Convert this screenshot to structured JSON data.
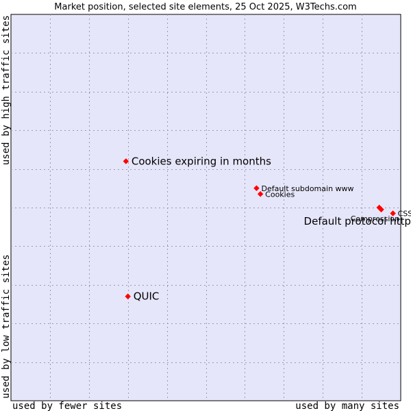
{
  "chart_data": {
    "type": "scatter",
    "title": "Market position, selected site elements, 25 Oct 2025, W3Techs.com",
    "xlabel_left": "used by fewer sites",
    "xlabel_right": "used by many sites",
    "ylabel_top": "used by high traffic sites",
    "ylabel_bottom": "used by low traffic sites",
    "xlim": [
      0,
      10
    ],
    "ylim": [
      0,
      10
    ],
    "grid": true,
    "point_color": "#ff0000",
    "plot_background": "#e6e6fa",
    "points": [
      {
        "name": "Cookies expiring in months",
        "x": 2.95,
        "y": 6.2,
        "size": "large"
      },
      {
        "name": "QUIC",
        "x": 3.0,
        "y": 2.7,
        "size": "large"
      },
      {
        "name": "Default subdomain www",
        "x": 6.3,
        "y": 5.5,
        "size": "small"
      },
      {
        "name": "Cookies",
        "x": 6.4,
        "y": 5.35,
        "size": "small"
      },
      {
        "name": "Compression",
        "x": 9.45,
        "y": 5.0,
        "size": "small"
      },
      {
        "name": "Default protocol https",
        "x": 9.5,
        "y": 4.95,
        "size": "large"
      },
      {
        "name": "CSS",
        "x": 9.8,
        "y": 4.85,
        "size": "small"
      }
    ]
  }
}
